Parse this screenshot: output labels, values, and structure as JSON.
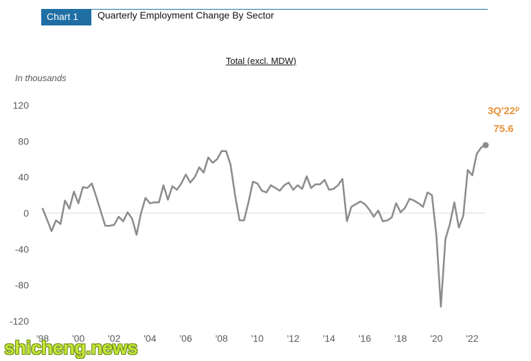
{
  "header": {
    "tag": "Chart 1",
    "title": "Quarterly Employment Change By Sector"
  },
  "watermark": "shicheng.news",
  "colors": {
    "header_blue": "#1f6fa5",
    "line": "#8c8c8c",
    "callout": "#e8923c",
    "zero_line": "#d9d9d9"
  },
  "chart_data": {
    "type": "line",
    "title": "Total (excl. MDW)",
    "ylabel": "In thousands",
    "ylim": [
      -120,
      120
    ],
    "yticks": [
      -120,
      -80,
      -40,
      0,
      40,
      80,
      120
    ],
    "ytick_labels": [
      "-120",
      "-80",
      "-40",
      "0",
      "40",
      "80",
      "120"
    ],
    "xlim": [
      1998.0,
      2022.75
    ],
    "xticks": [
      1998,
      2000,
      2002,
      2004,
      2006,
      2008,
      2010,
      2012,
      2014,
      2016,
      2018,
      2020,
      2022
    ],
    "xtick_labels": [
      "'98",
      "'00",
      "'02",
      "'04",
      "'06",
      "'08",
      "'10",
      "'12",
      "'14",
      "'16",
      "'18",
      "'20",
      "'22"
    ],
    "grid": false,
    "x": [
      1998.0,
      1998.25,
      1998.5,
      1998.75,
      1999.0,
      1999.25,
      1999.5,
      1999.75,
      2000.0,
      2000.25,
      2000.5,
      2000.75,
      2001.0,
      2001.25,
      2001.5,
      2001.75,
      2002.0,
      2002.25,
      2002.5,
      2002.75,
      2003.0,
      2003.25,
      2003.5,
      2003.75,
      2004.0,
      2004.25,
      2004.5,
      2004.75,
      2005.0,
      2005.25,
      2005.5,
      2005.75,
      2006.0,
      2006.25,
      2006.5,
      2006.75,
      2007.0,
      2007.25,
      2007.5,
      2007.75,
      2008.0,
      2008.25,
      2008.5,
      2008.75,
      2009.0,
      2009.25,
      2009.5,
      2009.75,
      2010.0,
      2010.25,
      2010.5,
      2010.75,
      2011.0,
      2011.25,
      2011.5,
      2011.75,
      2012.0,
      2012.25,
      2012.5,
      2012.75,
      2013.0,
      2013.25,
      2013.5,
      2013.75,
      2014.0,
      2014.25,
      2014.5,
      2014.75,
      2015.0,
      2015.25,
      2015.5,
      2015.75,
      2016.0,
      2016.25,
      2016.5,
      2016.75,
      2017.0,
      2017.25,
      2017.5,
      2017.75,
      2018.0,
      2018.25,
      2018.5,
      2018.75,
      2019.0,
      2019.25,
      2019.5,
      2019.75,
      2020.0,
      2020.25,
      2020.5,
      2020.75,
      2021.0,
      2021.25,
      2021.5,
      2021.75,
      2022.0,
      2022.25,
      2022.5,
      2022.75
    ],
    "series": [
      {
        "values": [
          5,
          -7,
          -20,
          -8,
          -12,
          14,
          5,
          24,
          11,
          29,
          28,
          33,
          18,
          2,
          -14,
          -14,
          -13,
          -4,
          -9,
          1,
          -6,
          -24,
          0,
          17,
          11,
          12,
          12,
          31,
          15,
          30,
          26,
          33,
          43,
          34,
          40,
          51,
          45,
          62,
          56,
          60,
          69,
          69,
          54,
          20,
          -8,
          -8,
          12,
          35,
          33,
          25,
          23,
          31,
          28,
          25,
          31,
          34,
          26,
          31,
          27,
          41,
          28,
          32,
          32,
          37,
          26,
          27,
          31,
          38,
          -9,
          7,
          10,
          13,
          10,
          4,
          -4,
          3,
          -9,
          -8,
          -5,
          11,
          1,
          6,
          16,
          14,
          11,
          7,
          23,
          20,
          -25,
          -104,
          -29,
          -12,
          12,
          -16,
          -3,
          48,
          42,
          66,
          73,
          75.6
        ]
      }
    ],
    "annotation": {
      "label": "3Q'22p",
      "value_text": "75.6",
      "x": 2022.75,
      "y": 75.6
    }
  }
}
